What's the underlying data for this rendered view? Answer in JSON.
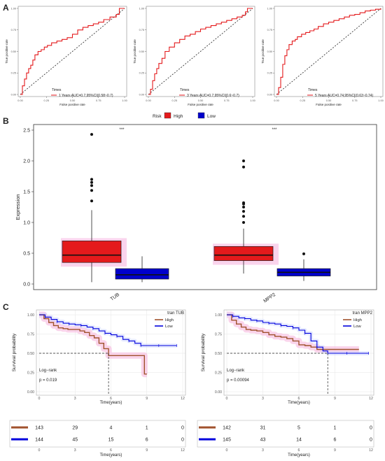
{
  "panels": {
    "a": "A",
    "b": "B",
    "c": "C"
  },
  "roc": {
    "xlabel": "False positive rate",
    "ylabel": "True positive rate",
    "legend_title": "Times",
    "ticks_x": [
      "0.00",
      "0.25",
      "0.50",
      "0.75",
      "1.00"
    ],
    "ticks_y": [
      "0.00",
      "0.25",
      "0.50",
      "0.75",
      "1.00"
    ],
    "line_color": "#e41a1c",
    "charts": [
      {
        "legend": "1 Years AUC=0.7,95%CI(0.58~0.7)",
        "x": [
          0,
          0.02,
          0.04,
          0.06,
          0.08,
          0.1,
          0.12,
          0.14,
          0.17,
          0.2,
          0.23,
          0.26,
          0.3,
          0.35,
          0.4,
          0.45,
          0.5,
          0.55,
          0.6,
          0.65,
          0.7,
          0.75,
          0.8,
          0.86,
          0.92,
          0.95,
          1.0
        ],
        "y": [
          0,
          0.1,
          0.18,
          0.25,
          0.3,
          0.34,
          0.4,
          0.46,
          0.5,
          0.52,
          0.55,
          0.57,
          0.6,
          0.62,
          0.64,
          0.66,
          0.7,
          0.75,
          0.78,
          0.8,
          0.82,
          0.84,
          0.87,
          0.9,
          0.93,
          1.0,
          1.0
        ]
      },
      {
        "legend": "3 Years AUC=0.7,95%CI(0.6~0.7)",
        "x": [
          0,
          0.02,
          0.04,
          0.06,
          0.08,
          0.1,
          0.13,
          0.16,
          0.2,
          0.25,
          0.3,
          0.35,
          0.4,
          0.45,
          0.5,
          0.55,
          0.6,
          0.65,
          0.7,
          0.75,
          0.8,
          0.85,
          0.9,
          0.93,
          0.95,
          1.0
        ],
        "y": [
          0,
          0.06,
          0.16,
          0.24,
          0.3,
          0.36,
          0.42,
          0.5,
          0.55,
          0.6,
          0.64,
          0.68,
          0.7,
          0.73,
          0.76,
          0.78,
          0.8,
          0.82,
          0.84,
          0.86,
          0.88,
          0.9,
          0.92,
          0.96,
          1.0,
          1.0
        ]
      },
      {
        "legend": "5 Years AUC=0.74,95%CI(0.63~0.74)",
        "x": [
          0,
          0.02,
          0.04,
          0.06,
          0.08,
          0.1,
          0.12,
          0.15,
          0.18,
          0.2,
          0.24,
          0.28,
          0.32,
          0.36,
          0.4,
          0.45,
          0.5,
          0.55,
          0.6,
          0.65,
          0.7,
          0.75,
          0.8,
          0.85,
          0.9,
          0.95,
          1.0
        ],
        "y": [
          0,
          0.08,
          0.2,
          0.35,
          0.45,
          0.52,
          0.58,
          0.62,
          0.64,
          0.67,
          0.7,
          0.72,
          0.74,
          0.76,
          0.79,
          0.82,
          0.84,
          0.86,
          0.88,
          0.9,
          0.92,
          0.93,
          0.95,
          0.97,
          0.98,
          0.99,
          1.0
        ]
      }
    ]
  },
  "box": {
    "legend_title": "Risk",
    "legend_items": [
      {
        "label": "High",
        "color": "#e41a1c"
      },
      {
        "label": "Low",
        "color": "#0000cc"
      }
    ],
    "ylabel": "Expression",
    "yticks": [
      "0.0",
      "0.5",
      "1.0",
      "1.5",
      "2.0",
      "2.5"
    ],
    "sig": [
      "***",
      "***"
    ],
    "ylim": [
      0,
      2.5
    ],
    "groups": [
      {
        "label": "TUB",
        "high": {
          "min": 0.03,
          "q1": 0.35,
          "median": 0.47,
          "q3": 0.7,
          "max": 1.2,
          "outliers": [
            1.35,
            1.52,
            1.6,
            1.65,
            1.7,
            2.43
          ]
        },
        "low": {
          "min": 0.03,
          "q1": 0.08,
          "median": 0.15,
          "q3": 0.25,
          "max": 0.45,
          "outliers": []
        }
      },
      {
        "label": "MPP2",
        "high": {
          "min": 0.17,
          "q1": 0.38,
          "median": 0.47,
          "q3": 0.61,
          "max": 0.9,
          "outliers": [
            1.0,
            1.1,
            1.18,
            1.25,
            1.3,
            1.32,
            1.9,
            2.0
          ]
        },
        "low": {
          "min": 0.05,
          "q1": 0.13,
          "median": 0.19,
          "q3": 0.25,
          "max": 0.4,
          "outliers": [
            0.49
          ]
        }
      }
    ]
  },
  "km": {
    "ylabel": "Survival probability",
    "xlabel": "Time(years)",
    "xticks": [
      "0",
      "3",
      "6",
      "9",
      "12"
    ],
    "yticks": [
      "0.00",
      "0.25",
      "0.50",
      "0.75",
      "1.00"
    ],
    "logrank": "Log−rank",
    "high_color": "#a0522d",
    "low_color": "#0000dd",
    "charts": [
      {
        "title": "tran TUB",
        "legend": [
          "High",
          "Low"
        ],
        "pvalue": "p = 0.019",
        "median_x": 5.8,
        "high": {
          "x": [
            0,
            0.4,
            0.8,
            1.2,
            1.6,
            2.0,
            2.4,
            3.0,
            3.4,
            3.8,
            4.2,
            4.6,
            5.0,
            5.4,
            5.8,
            6.4,
            7.0,
            7.5,
            8.2,
            8.8,
            9.0
          ],
          "y": [
            1.0,
            0.95,
            0.9,
            0.86,
            0.83,
            0.82,
            0.81,
            0.81,
            0.79,
            0.77,
            0.73,
            0.7,
            0.63,
            0.56,
            0.47,
            0.47,
            0.47,
            0.47,
            0.47,
            0.23,
            0.23
          ]
        },
        "low": {
          "x": [
            0,
            0.5,
            1.0,
            1.5,
            2.0,
            2.5,
            3.0,
            3.5,
            4.0,
            4.5,
            5.0,
            5.5,
            6.0,
            6.5,
            7.0,
            7.5,
            8.0,
            8.5,
            9.0,
            10.0,
            11.0,
            11.5
          ],
          "y": [
            1.0,
            0.97,
            0.94,
            0.91,
            0.89,
            0.88,
            0.87,
            0.86,
            0.84,
            0.82,
            0.79,
            0.76,
            0.74,
            0.72,
            0.68,
            0.66,
            0.63,
            0.6,
            0.6,
            0.6,
            0.6,
            0.6
          ]
        },
        "risk_high": [
          "143",
          "29",
          "4",
          "1",
          "0"
        ],
        "risk_low": [
          "144",
          "45",
          "15",
          "6",
          "0"
        ]
      },
      {
        "title": "tran MPP2",
        "legend": [
          "High",
          "Low"
        ],
        "pvalue": "p = 0.00094",
        "median_x": 8.4,
        "high": {
          "x": [
            0,
            0.4,
            0.8,
            1.2,
            1.6,
            2.0,
            2.5,
            3.0,
            3.5,
            4.0,
            4.5,
            5.0,
            5.5,
            6.0,
            6.5,
            7.0,
            7.5,
            8.0,
            8.5,
            9.0,
            10.0,
            11.0
          ],
          "y": [
            1.0,
            0.93,
            0.88,
            0.84,
            0.81,
            0.8,
            0.79,
            0.77,
            0.74,
            0.72,
            0.71,
            0.69,
            0.66,
            0.61,
            0.6,
            0.58,
            0.55,
            0.55,
            0.55,
            0.55,
            0.55,
            0.55
          ]
        },
        "low": {
          "x": [
            0,
            0.5,
            1.0,
            1.5,
            2.0,
            2.5,
            3.0,
            3.5,
            4.0,
            4.5,
            5.0,
            5.5,
            6.0,
            6.5,
            7.0,
            7.5,
            8.0,
            8.4,
            9.0,
            10.0,
            11.0,
            11.8
          ],
          "y": [
            1.0,
            0.98,
            0.96,
            0.95,
            0.93,
            0.92,
            0.9,
            0.89,
            0.88,
            0.86,
            0.85,
            0.83,
            0.8,
            0.76,
            0.66,
            0.58,
            0.53,
            0.5,
            0.5,
            0.5,
            0.5,
            0.5
          ]
        },
        "risk_high": [
          "142",
          "31",
          "5",
          "1",
          "0"
        ],
        "risk_low": [
          "145",
          "43",
          "14",
          "6",
          "0"
        ]
      }
    ]
  }
}
